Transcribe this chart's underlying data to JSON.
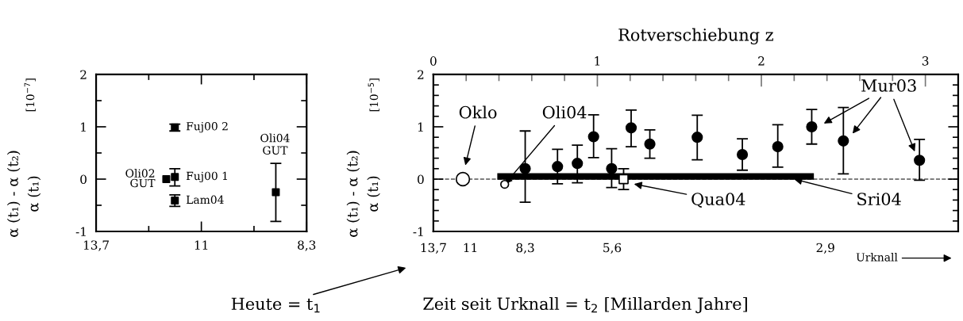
{
  "chart_data": [
    {
      "type": "scatter",
      "ylabel": "α (t₁) - α (t₂)\nα (t₁)",
      "marker": "square",
      "annotations": [
        "[10$^{−7}$]",
        {
          "text": "Oli02\nGUT",
          "x": 11.9,
          "y": 0
        },
        {
          "text": "Fuj00 1",
          "x": 11.68,
          "y": 0.04
        },
        {
          "text": "Fuj00 2",
          "x": 11.68,
          "y": 0.99
        },
        {
          "text": "Lam04",
          "x": 11.68,
          "y": -0.41
        },
        "Oli04\nGUT"
      ],
      "x": [
        11.9,
        11.68,
        11.68,
        11.68,
        9.09
      ],
      "series": [
        {
          "color": "#000000",
          "values": [
            0,
            0.04,
            0.99,
            -0.41,
            -0.25
          ],
          "errors": [
            null,
            [
              -0.13,
              0.2
            ],
            [
              0.92,
              1.05
            ],
            [
              -0.52,
              -0.3
            ],
            [
              -0.81,
              0.3
            ]
          ]
        }
      ],
      "xlim": [
        13.7,
        8.3
      ],
      "ylim": [
        -1,
        2
      ],
      "xticks": [
        {
          "value": 13.7,
          "label": "13,7"
        },
        {
          "value": 12.35,
          "label": null
        },
        11,
        {
          "value": 9.65,
          "label": null
        },
        {
          "value": 8.3,
          "label": "8,3"
        }
      ],
      "yticks": [
        -1,
        {
          "value": -0.5,
          "label": null
        },
        0,
        {
          "value": 0.5,
          "label": null
        },
        1,
        {
          "value": 1.5,
          "label": null
        },
        2
      ]
    },
    {
      "type": "scatter",
      "ylabel": "α (t₁) - α (t₂)\nα (t₁)",
      "xlabel": "Rotverschiebung z",
      "marker": "circle",
      "annotations": [
        "[10$^{−5}$]",
        "Oklo",
        {
          "text": "Oli04",
          "x": 0.435,
          "y": -0.1
        },
        "Qua04",
        {
          "text": "Sri04",
          "x": 2.2,
          "y": 0
        },
        "Mur03",
        "Heute = t$_{1}$",
        "Urknall",
        "13,7",
        "11",
        "8,3",
        "5,6",
        "2,9",
        "Zeit seit Urknall = t$_{2}$ [Millarden Jahre]"
      ],
      "series": [
        {
          "color": "#000000",
          "marker": "circle",
          "x": [
            0.56,
            0.757,
            0.878,
            0.977,
            1.087,
            1.206,
            1.32,
            1.609,
            1.884,
            2.1,
            2.307,
            2.5,
            2.964
          ],
          "values": [
            0.2,
            0.24,
            0.3,
            0.81,
            0.2,
            0.98,
            0.67,
            0.8,
            0.47,
            0.62,
            1.0,
            0.73,
            0.36
          ],
          "errors": [
            [
              -0.44,
              0.92
            ],
            [
              -0.09,
              0.57
            ],
            [
              -0.07,
              0.65
            ],
            [
              0.41,
              1.23
            ],
            [
              -0.16,
              0.58
            ],
            [
              0.62,
              1.32
            ],
            [
              0.4,
              0.94
            ],
            [
              0.37,
              1.22
            ],
            [
              0.17,
              0.77
            ],
            [
              0.23,
              1.04
            ],
            [
              0.67,
              1.33
            ],
            [
              0.1,
              1.37
            ],
            [
              -0.02,
              0.76
            ]
          ]
        },
        {
          "color": "#ffffff",
          "marker": "circle",
          "x": [
            0.18
          ],
          "values": [
            0
          ]
        },
        {
          "color": "#ffffff",
          "marker": "circle",
          "x": [
            0.435
          ],
          "values": [
            -0.1
          ]
        },
        {
          "color": "#ffffff",
          "marker": "square",
          "x": [
            1.16
          ],
          "values": [
            0
          ],
          "errors": [
            0.2
          ]
        },
        {
          "type": "line",
          "marker": "none",
          "color": "#000000",
          "x": [
            0.41,
            2.3
          ],
          "values": [
            0.05,
            0.05
          ]
        }
      ],
      "ref_lines": [
        {
          "axis": "y",
          "value": 0,
          "line_style": "dashed",
          "color": "#555555"
        }
      ],
      "xlim": [
        0,
        3.2
      ],
      "ylim": [
        -1,
        2
      ],
      "xticks": [
        0,
        {
          "value": 0.2,
          "label": null
        },
        {
          "value": 0.4,
          "label": null
        },
        {
          "value": 0.6,
          "label": null
        },
        {
          "value": 0.8,
          "label": null
        },
        1,
        {
          "value": 1.2,
          "label": null
        },
        {
          "value": 1.4,
          "label": null
        },
        {
          "value": 1.6,
          "label": null
        },
        {
          "value": 1.8,
          "label": null
        },
        2,
        {
          "value": 2.2,
          "label": null
        },
        {
          "value": 2.4,
          "label": null
        },
        {
          "value": 2.6,
          "label": null
        },
        {
          "value": 2.8,
          "label": null
        },
        3
      ],
      "yticks": [
        -1,
        {
          "value": -0.8,
          "label": null
        },
        {
          "value": -0.6,
          "label": null
        },
        {
          "value": -0.4,
          "label": null
        },
        {
          "value": -0.2,
          "label": null
        },
        0,
        {
          "value": 0.2,
          "label": null
        },
        {
          "value": 0.4,
          "label": null
        },
        {
          "value": 0.6,
          "label": null
        },
        {
          "value": 0.8,
          "label": null
        },
        1,
        {
          "value": 1.2,
          "label": null
        },
        {
          "value": 1.4,
          "label": null
        },
        {
          "value": 1.6,
          "label": null
        },
        {
          "value": 1.8,
          "label": null
        },
        2
      ]
    }
  ]
}
